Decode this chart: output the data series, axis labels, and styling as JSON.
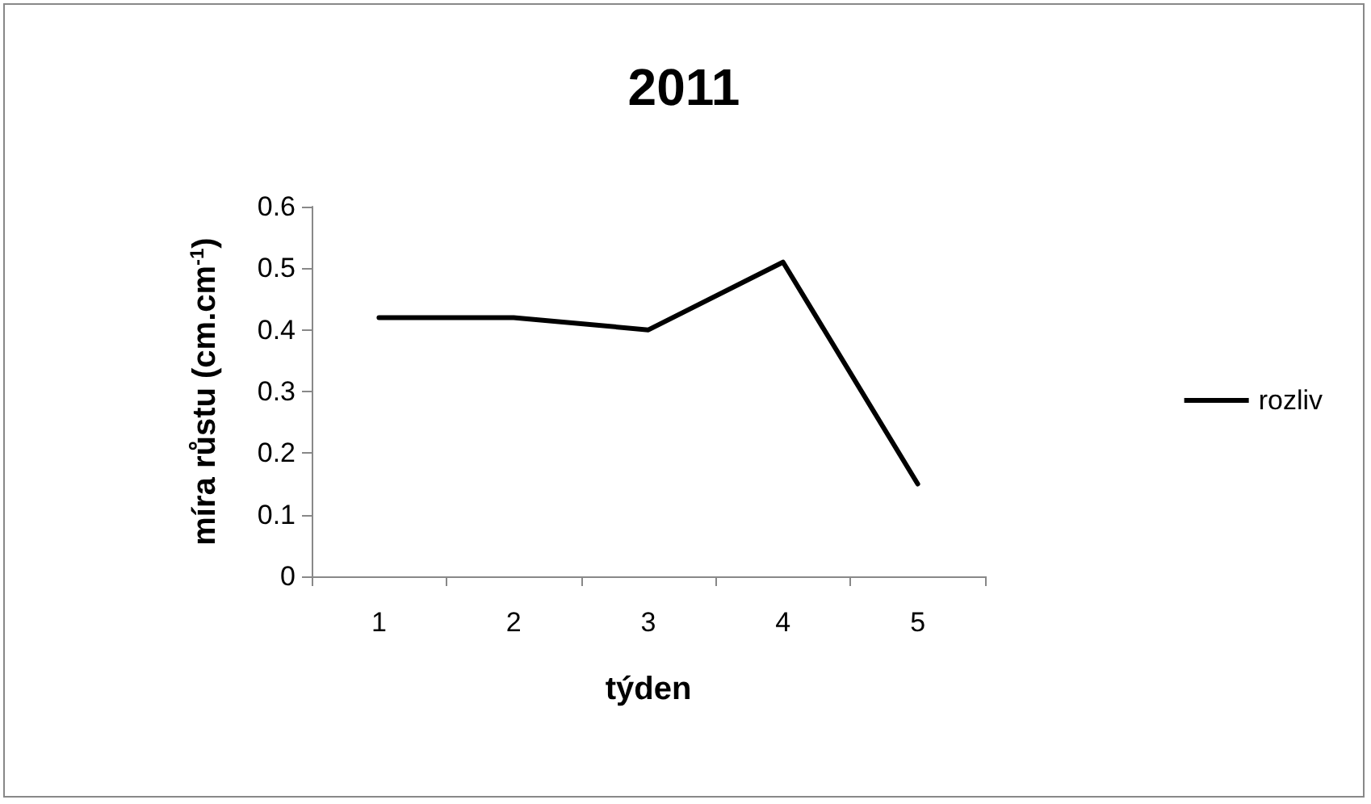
{
  "chart_data": {
    "type": "line",
    "title": "2011",
    "xlabel": "týden",
    "ylabel": "míra růstu (cm.cm$^{-1}$)",
    "categories": [
      "1",
      "2",
      "3",
      "4",
      "5"
    ],
    "series": [
      {
        "name": "rozliv",
        "color": "#000000",
        "values": [
          0.42,
          0.42,
          0.4,
          0.51,
          0.15
        ]
      }
    ],
    "ylim": [
      0,
      0.6
    ],
    "yticks": [
      0,
      0.1,
      0.2,
      0.3,
      0.4,
      0.5,
      0.6
    ],
    "grid": false,
    "legend": "right",
    "marker": "none",
    "line_style": "solid"
  }
}
